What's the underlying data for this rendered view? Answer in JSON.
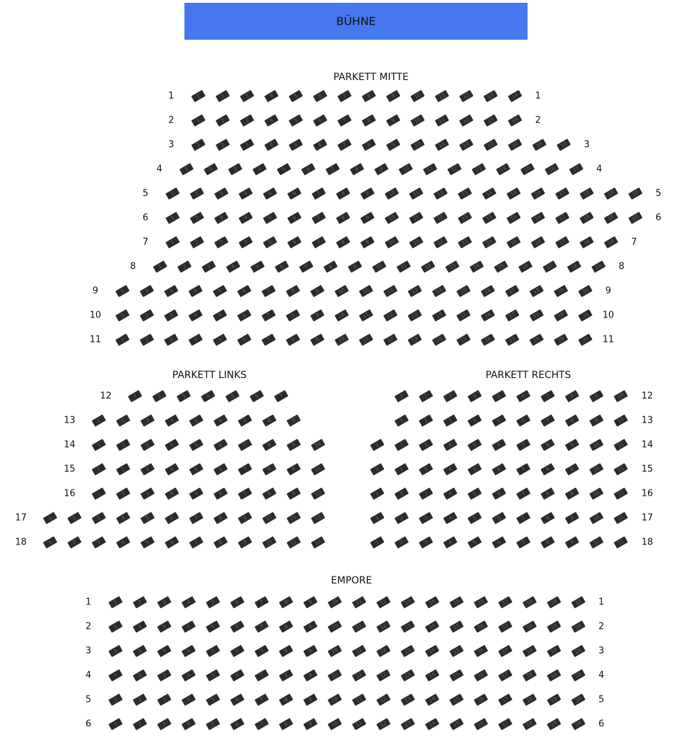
{
  "stage": {
    "label": "BÜHNE",
    "color": "#4677ee"
  },
  "seat_color": "#2b2b2b",
  "sections": [
    {
      "id": "mitte",
      "title": "PARKETT MITTE",
      "row_labels": "both",
      "rows": [
        {
          "label": "1",
          "seats": 14
        },
        {
          "label": "2",
          "seats": 14
        },
        {
          "label": "3",
          "seats": 16
        },
        {
          "label": "4",
          "seats": 17
        },
        {
          "label": "5",
          "seats": 20
        },
        {
          "label": "6",
          "seats": 20
        },
        {
          "label": "7",
          "seats": 19
        },
        {
          "label": "8",
          "seats": 19
        },
        {
          "label": "9",
          "seats": 20
        },
        {
          "label": "10",
          "seats": 20
        },
        {
          "label": "11",
          "seats": 20
        }
      ]
    },
    {
      "id": "links",
      "title": "PARKETT LINKS",
      "row_labels": "left",
      "rows": [
        {
          "label": "12",
          "seats": 7
        },
        {
          "label": "13",
          "seats": 9
        },
        {
          "label": "14",
          "seats": 10
        },
        {
          "label": "15",
          "seats": 10
        },
        {
          "label": "16",
          "seats": 10
        },
        {
          "label": "17",
          "seats": 12
        },
        {
          "label": "18",
          "seats": 12
        }
      ]
    },
    {
      "id": "rechts",
      "title": "PARKETT RECHTS",
      "row_labels": "right",
      "rows": [
        {
          "label": "12",
          "seats": 10
        },
        {
          "label": "13",
          "seats": 10
        },
        {
          "label": "14",
          "seats": 11
        },
        {
          "label": "15",
          "seats": 11
        },
        {
          "label": "16",
          "seats": 11
        },
        {
          "label": "17",
          "seats": 11
        },
        {
          "label": "18",
          "seats": 11
        }
      ]
    },
    {
      "id": "empore",
      "title": "EMPORE",
      "row_labels": "both",
      "rows": [
        {
          "label": "1",
          "seats": 20
        },
        {
          "label": "2",
          "seats": 20
        },
        {
          "label": "3",
          "seats": 20
        },
        {
          "label": "4",
          "seats": 20
        },
        {
          "label": "5",
          "seats": 20
        },
        {
          "label": "6",
          "seats": 20
        }
      ]
    }
  ]
}
